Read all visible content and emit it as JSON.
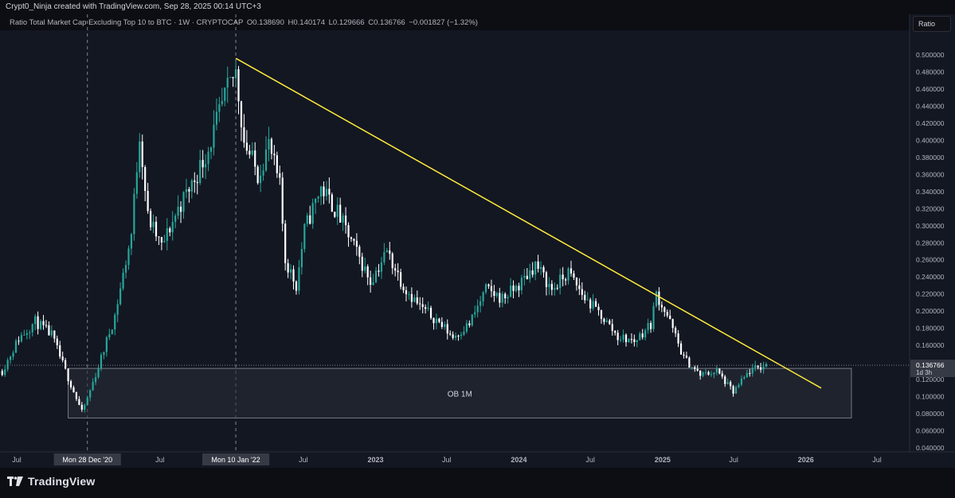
{
  "header": {
    "attribution": "Crypt0_Ninja created with TradingView.com, Sep 28, 2025 00:14 UTC+3"
  },
  "legend": {
    "symbol": "Ratio Total Market Cap Excluding Top 10 to BTC · 1W · CRYPTOCAP",
    "open": "O0.138690",
    "high": "H0.140174",
    "low": "L0.129666",
    "close": "C0.136766",
    "change": "−0.001827 (−1.32%)"
  },
  "scale_mode_label": "Ratio",
  "footer": {
    "brand": "TradingView"
  },
  "colors": {
    "background": "#131722",
    "up": "#26a69a",
    "down": "#ffffff",
    "trendline": "#ffeb3b",
    "ob_fill": "#2a2e39",
    "ob_border": "#787b86",
    "price_badge": "#363a45"
  },
  "chart_data": {
    "type": "candlestick",
    "title": "Ratio Total Market Cap Excluding Top 10 to BTC · 1W · CRYPTOCAP",
    "interval": "1W",
    "ylim": [
      0.035,
      0.52
    ],
    "y_ticks": [
      "0.500000",
      "0.480000",
      "0.460000",
      "0.440000",
      "0.420000",
      "0.400000",
      "0.380000",
      "0.360000",
      "0.340000",
      "0.320000",
      "0.300000",
      "0.280000",
      "0.260000",
      "0.240000",
      "0.220000",
      "0.200000",
      "0.180000",
      "0.160000",
      "0.140000",
      "0.120000",
      "0.100000",
      "0.080000",
      "0.060000",
      "0.040000"
    ],
    "x_ticks": [
      {
        "label": "Jul",
        "date": "2020-07-01",
        "highlight": false
      },
      {
        "label": "Mon 28 Dec '20",
        "date": "2020-12-28",
        "highlight": true
      },
      {
        "label": "Jul",
        "date": "2021-07-01",
        "highlight": false
      },
      {
        "label": "Mon 10 Jan '22",
        "date": "2022-01-10",
        "highlight": true
      },
      {
        "label": "Jul",
        "date": "2022-07-01",
        "highlight": false
      },
      {
        "label": "2023",
        "date": "2023-01-01",
        "highlight": false,
        "bold": true
      },
      {
        "label": "Jul",
        "date": "2023-07-01",
        "highlight": false
      },
      {
        "label": "2024",
        "date": "2024-01-01",
        "highlight": false,
        "bold": true
      },
      {
        "label": "Jul",
        "date": "2024-07-01",
        "highlight": false
      },
      {
        "label": "2025",
        "date": "2025-01-01",
        "highlight": false,
        "bold": true
      },
      {
        "label": "Jul",
        "date": "2025-07-01",
        "highlight": false
      },
      {
        "label": "2026",
        "date": "2026-01-01",
        "highlight": false,
        "bold": true
      },
      {
        "label": "Jul",
        "date": "2026-07-01",
        "highlight": false
      }
    ],
    "vertical_markers": [
      "2020-12-28",
      "2022-01-10"
    ],
    "series": [
      {
        "name": "Ratio Total Market Cap Excluding Top 10 to BTC",
        "weekly_closes": [
          [
            "2020-05-25",
            0.13
          ],
          [
            "2020-07-06",
            0.168
          ],
          [
            "2020-08-17",
            0.188
          ],
          [
            "2020-09-28",
            0.172
          ],
          [
            "2020-11-02",
            0.13
          ],
          [
            "2020-12-14",
            0.082
          ],
          [
            "2020-12-28",
            0.098
          ],
          [
            "2021-01-25",
            0.135
          ],
          [
            "2021-03-08",
            0.195
          ],
          [
            "2021-04-19",
            0.29
          ],
          [
            "2021-05-10",
            0.41
          ],
          [
            "2021-05-31",
            0.31
          ],
          [
            "2021-07-05",
            0.275
          ],
          [
            "2021-08-16",
            0.32
          ],
          [
            "2021-09-27",
            0.355
          ],
          [
            "2021-11-01",
            0.39
          ],
          [
            "2021-12-13",
            0.45
          ],
          [
            "2022-01-10",
            0.48
          ],
          [
            "2022-01-31",
            0.4
          ],
          [
            "2022-03-07",
            0.36
          ],
          [
            "2022-04-04",
            0.395
          ],
          [
            "2022-05-02",
            0.345
          ],
          [
            "2022-05-16",
            0.26
          ],
          [
            "2022-06-13",
            0.23
          ],
          [
            "2022-07-04",
            0.295
          ],
          [
            "2022-08-15",
            0.345
          ],
          [
            "2022-09-26",
            0.315
          ],
          [
            "2022-11-07",
            0.275
          ],
          [
            "2022-12-19",
            0.235
          ],
          [
            "2023-01-30",
            0.27
          ],
          [
            "2023-03-13",
            0.23
          ],
          [
            "2023-04-24",
            0.205
          ],
          [
            "2023-06-05",
            0.19
          ],
          [
            "2023-07-17",
            0.17
          ],
          [
            "2023-08-28",
            0.185
          ],
          [
            "2023-10-09",
            0.225
          ],
          [
            "2023-11-20",
            0.215
          ],
          [
            "2024-01-01",
            0.23
          ],
          [
            "2024-02-12",
            0.255
          ],
          [
            "2024-03-25",
            0.225
          ],
          [
            "2024-05-06",
            0.245
          ],
          [
            "2024-06-17",
            0.215
          ],
          [
            "2024-07-29",
            0.195
          ],
          [
            "2024-09-09",
            0.17
          ],
          [
            "2024-10-21",
            0.165
          ],
          [
            "2024-12-02",
            0.185
          ],
          [
            "2024-12-16",
            0.22
          ],
          [
            "2025-01-13",
            0.195
          ],
          [
            "2025-02-24",
            0.145
          ],
          [
            "2025-04-07",
            0.125
          ],
          [
            "2025-05-19",
            0.13
          ],
          [
            "2025-06-30",
            0.105
          ],
          [
            "2025-08-11",
            0.13
          ],
          [
            "2025-09-22",
            0.1368
          ]
        ]
      }
    ],
    "last_value": "0.136766",
    "countdown": "1d 3h",
    "trendline": {
      "from": [
        "2022-01-10",
        0.496
      ],
      "to": [
        "2026-02-09",
        0.11
      ]
    },
    "zones": [
      {
        "label": "OB 1M",
        "from": "2020-11-09",
        "to": "2026-04-27",
        "low": 0.075,
        "high": 0.133
      }
    ],
    "grid": false,
    "legend": "top-left",
    "price_scale": "right"
  }
}
